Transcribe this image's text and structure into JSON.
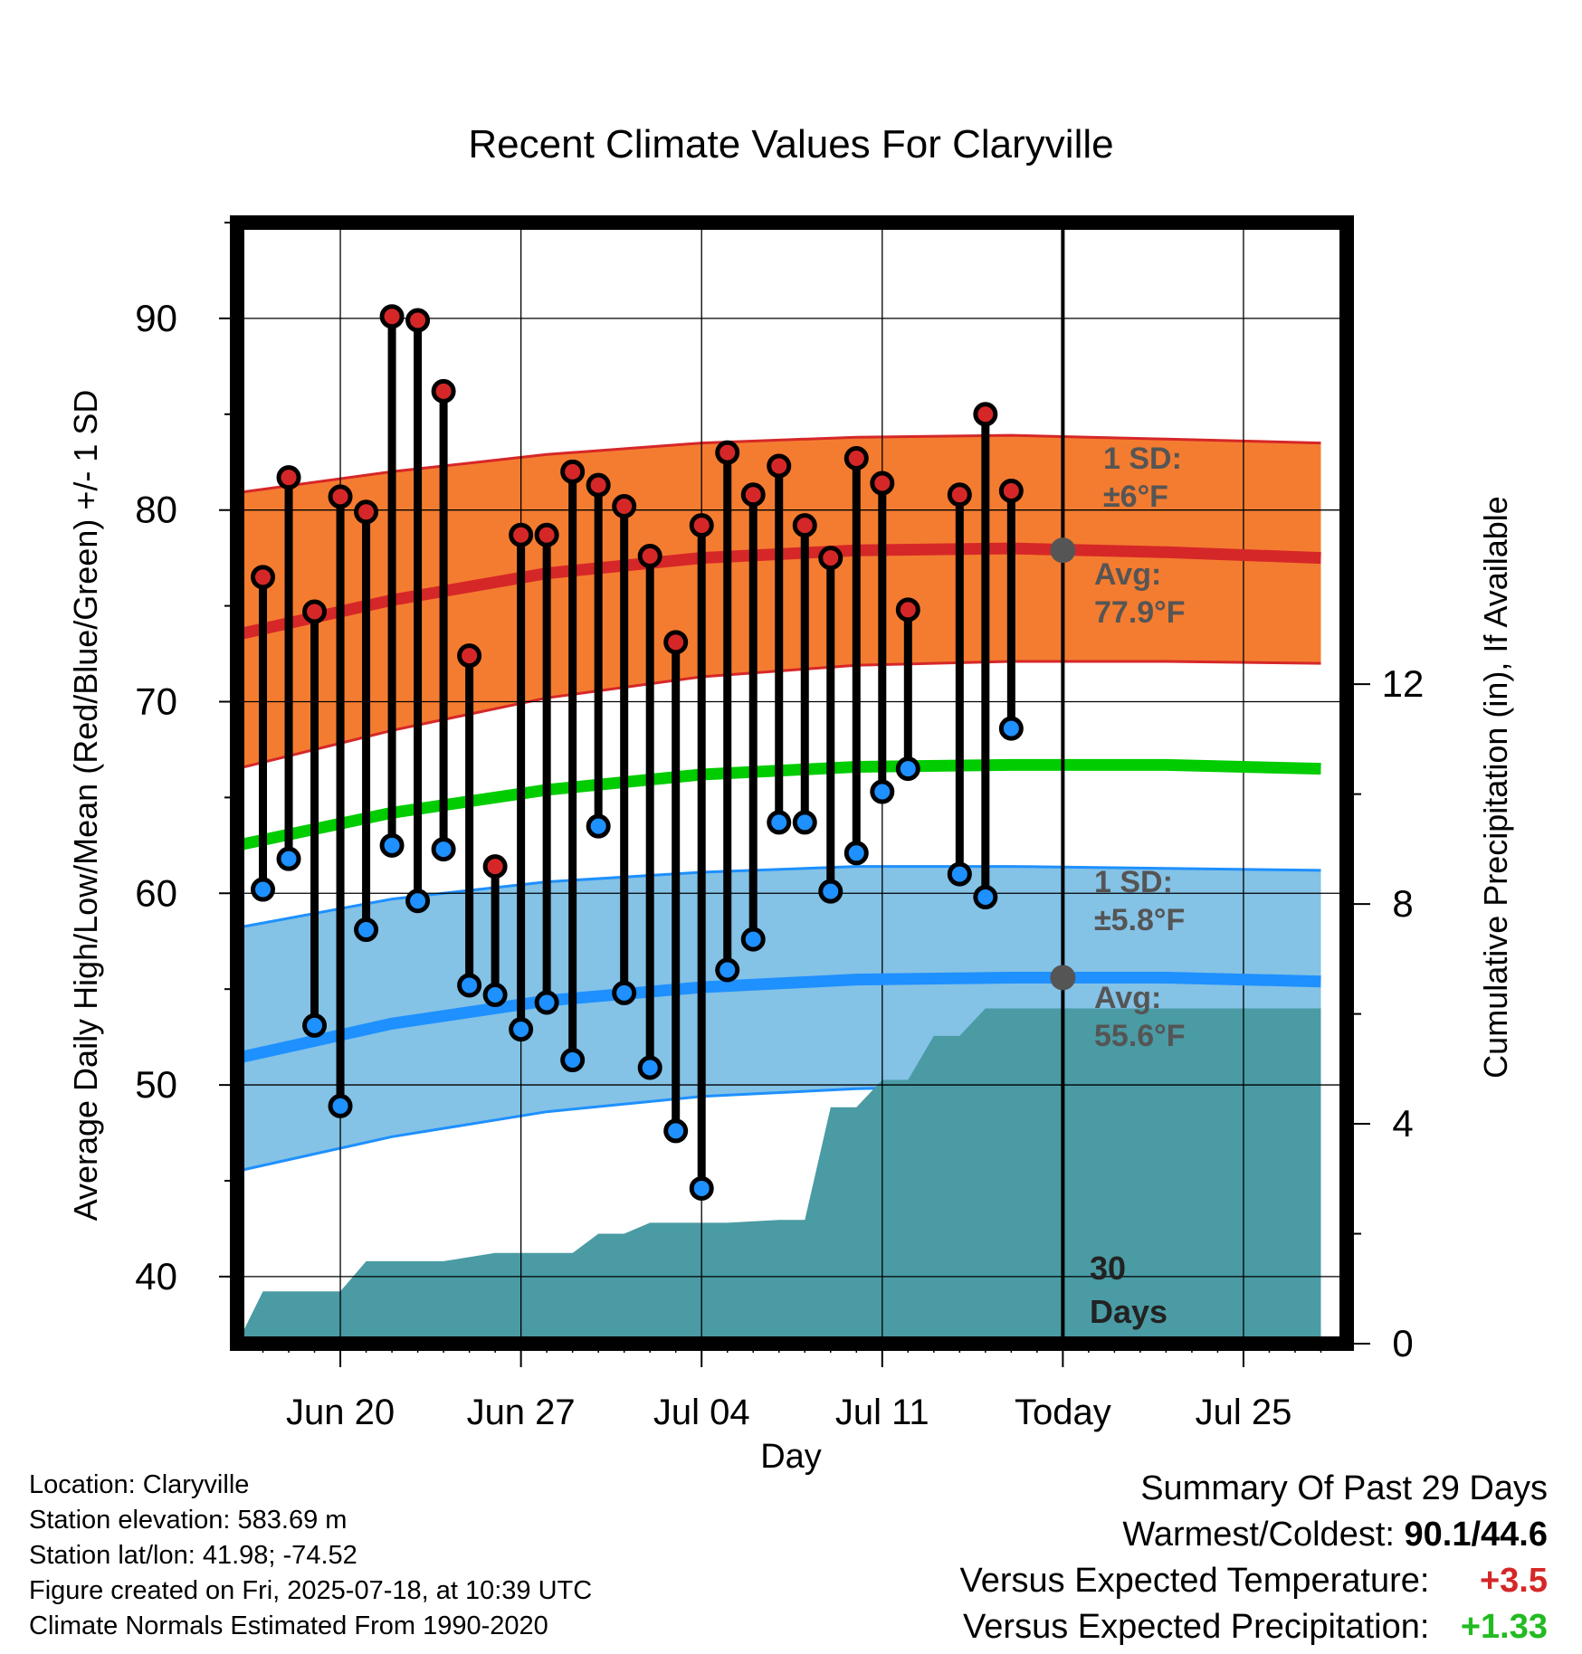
{
  "chart_data": {
    "type": "line",
    "title": "Recent Climate Values For Claryville",
    "xlabel": "Day",
    "ylabel_left": "Average Daily High/Low/Mean (Red/Blue/Green) +/- 1 SD",
    "ylabel_right": "Cumulative Precipitation (in), If Available",
    "ylim_left": [
      36.5,
      95
    ],
    "ylim_right": [
      0,
      20.4
    ],
    "xlim": [
      "2025-06-16",
      "2025-07-29"
    ],
    "x_ticks": [
      {
        "date": "2025-06-20",
        "label": "Jun 20"
      },
      {
        "date": "2025-06-27",
        "label": "Jun 27"
      },
      {
        "date": "2025-07-04",
        "label": "Jul 04"
      },
      {
        "date": "2025-07-11",
        "label": "Jul 11"
      },
      {
        "date": "2025-07-18",
        "label": "Today"
      },
      {
        "date": "2025-07-25",
        "label": "Jul 25"
      }
    ],
    "y_ticks_left": [
      40,
      50,
      60,
      70,
      80,
      90
    ],
    "y_ticks_right": [
      0,
      4,
      8,
      12
    ],
    "grid": true,
    "today_date": "2025-07-18",
    "today_label": [
      "30",
      "Days"
    ],
    "daily": [
      {
        "date": "2025-06-17",
        "high": 76.5,
        "low": 60.2
      },
      {
        "date": "2025-06-18",
        "high": 81.7,
        "low": 61.8
      },
      {
        "date": "2025-06-19",
        "high": 74.7,
        "low": 53.1
      },
      {
        "date": "2025-06-20",
        "high": 80.7,
        "low": 48.9
      },
      {
        "date": "2025-06-21",
        "high": 79.9,
        "low": 58.1
      },
      {
        "date": "2025-06-22",
        "high": 90.1,
        "low": 62.5
      },
      {
        "date": "2025-06-23",
        "high": 89.9,
        "low": 59.6
      },
      {
        "date": "2025-06-24",
        "high": 86.2,
        "low": 62.3
      },
      {
        "date": "2025-06-25",
        "high": 72.4,
        "low": 55.2
      },
      {
        "date": "2025-06-26",
        "high": 61.4,
        "low": 54.7
      },
      {
        "date": "2025-06-27",
        "high": 78.7,
        "low": 52.9
      },
      {
        "date": "2025-06-28",
        "high": 78.7,
        "low": 54.3
      },
      {
        "date": "2025-06-29",
        "high": 82.0,
        "low": 51.3
      },
      {
        "date": "2025-06-30",
        "high": 81.3,
        "low": 63.5
      },
      {
        "date": "2025-07-01",
        "high": 80.2,
        "low": 54.8
      },
      {
        "date": "2025-07-02",
        "high": 77.6,
        "low": 50.9
      },
      {
        "date": "2025-07-03",
        "high": 73.1,
        "low": 47.6
      },
      {
        "date": "2025-07-04",
        "high": 79.2,
        "low": 44.6
      },
      {
        "date": "2025-07-05",
        "high": 83.0,
        "low": 56.0
      },
      {
        "date": "2025-07-06",
        "high": 80.8,
        "low": 57.6
      },
      {
        "date": "2025-07-07",
        "high": 82.3,
        "low": 63.7
      },
      {
        "date": "2025-07-08",
        "high": 79.2,
        "low": 63.7
      },
      {
        "date": "2025-07-09",
        "high": 77.5,
        "low": 60.1
      },
      {
        "date": "2025-07-10",
        "high": 82.7,
        "low": 62.1
      },
      {
        "date": "2025-07-11",
        "high": 81.4,
        "low": 65.3
      },
      {
        "date": "2025-07-12",
        "high": 74.8,
        "low": 66.5
      },
      {
        "date": "2025-07-14",
        "high": 80.8,
        "low": 61.0
      },
      {
        "date": "2025-07-15",
        "high": 85.0,
        "low": 59.8
      },
      {
        "date": "2025-07-16",
        "high": 81.0,
        "low": 68.6
      }
    ],
    "normals": {
      "dates": [
        "2025-06-16",
        "2025-06-22",
        "2025-06-28",
        "2025-07-04",
        "2025-07-10",
        "2025-07-16",
        "2025-07-22",
        "2025-07-28"
      ],
      "high_avg": [
        73.5,
        75.3,
        76.7,
        77.5,
        77.9,
        78.0,
        77.8,
        77.5
      ],
      "high_plus_sd": [
        80.9,
        82.0,
        82.9,
        83.5,
        83.8,
        83.9,
        83.7,
        83.5
      ],
      "high_minus_sd": [
        66.5,
        68.5,
        70.2,
        71.3,
        71.9,
        72.1,
        72.1,
        72.0
      ],
      "mean": [
        62.5,
        64.2,
        65.4,
        66.2,
        66.6,
        66.7,
        66.7,
        66.5
      ],
      "low_avg": [
        51.4,
        53.2,
        54.4,
        55.1,
        55.5,
        55.6,
        55.6,
        55.4
      ],
      "low_plus_sd": [
        58.2,
        59.7,
        60.6,
        61.1,
        61.4,
        61.4,
        61.3,
        61.2
      ],
      "low_minus_sd": [
        45.5,
        47.3,
        48.6,
        49.4,
        49.8,
        50.0,
        50.0,
        50.0
      ]
    },
    "precip_cumulative": {
      "dates": [
        "2025-06-16",
        "2025-06-17",
        "2025-06-20",
        "2025-06-21",
        "2025-06-24",
        "2025-06-26",
        "2025-06-29",
        "2025-06-30",
        "2025-07-01",
        "2025-07-02",
        "2025-07-05",
        "2025-07-07",
        "2025-07-08",
        "2025-07-09",
        "2025-07-10",
        "2025-07-11",
        "2025-07-12",
        "2025-07-13",
        "2025-07-14",
        "2025-07-15",
        "2025-07-16",
        "2025-07-28"
      ],
      "values": [
        0.0,
        0.95,
        0.95,
        1.5,
        1.5,
        1.65,
        1.65,
        2.0,
        2.0,
        2.2,
        2.2,
        2.25,
        2.25,
        4.3,
        4.3,
        4.8,
        4.8,
        5.6,
        5.6,
        6.1,
        6.1,
        6.1
      ]
    },
    "annotations": {
      "high_sd": [
        "1 SD:",
        "±6°F"
      ],
      "high_avg": [
        "Avg:",
        "77.9°F"
      ],
      "low_sd": [
        "1 SD:",
        "±5.8°F"
      ],
      "low_avg": [
        "Avg:",
        "55.6°F"
      ]
    },
    "colors": {
      "high_band": "#f47c30",
      "high_line": "#d62728",
      "mean_line": "#00cc00",
      "low_band": "#84c2e6",
      "low_line": "#1e90ff",
      "precip": "#4a9ba4",
      "high_dot": "#d62728",
      "low_dot": "#1e90ff",
      "avg_marker": "#555555"
    }
  },
  "info": {
    "location": "Location: Claryville",
    "elevation": "Station elevation: 583.69 m",
    "latlon": "Station lat/lon: 41.98; -74.52",
    "created": "Figure created on Fri, 2025-07-18, at 10:39 UTC",
    "normals": "Climate Normals Estimated From 1990-2020"
  },
  "summary": {
    "title": "Summary Of Past 29 Days",
    "warmest_coldest_label": "Warmest/Coldest:",
    "warmest_coldest_value": "90.1/44.6",
    "temp_label": "Versus Expected Temperature:",
    "temp_value": "+3.5",
    "precip_label": "Versus Expected Precipitation:",
    "precip_value": "+1.33"
  }
}
